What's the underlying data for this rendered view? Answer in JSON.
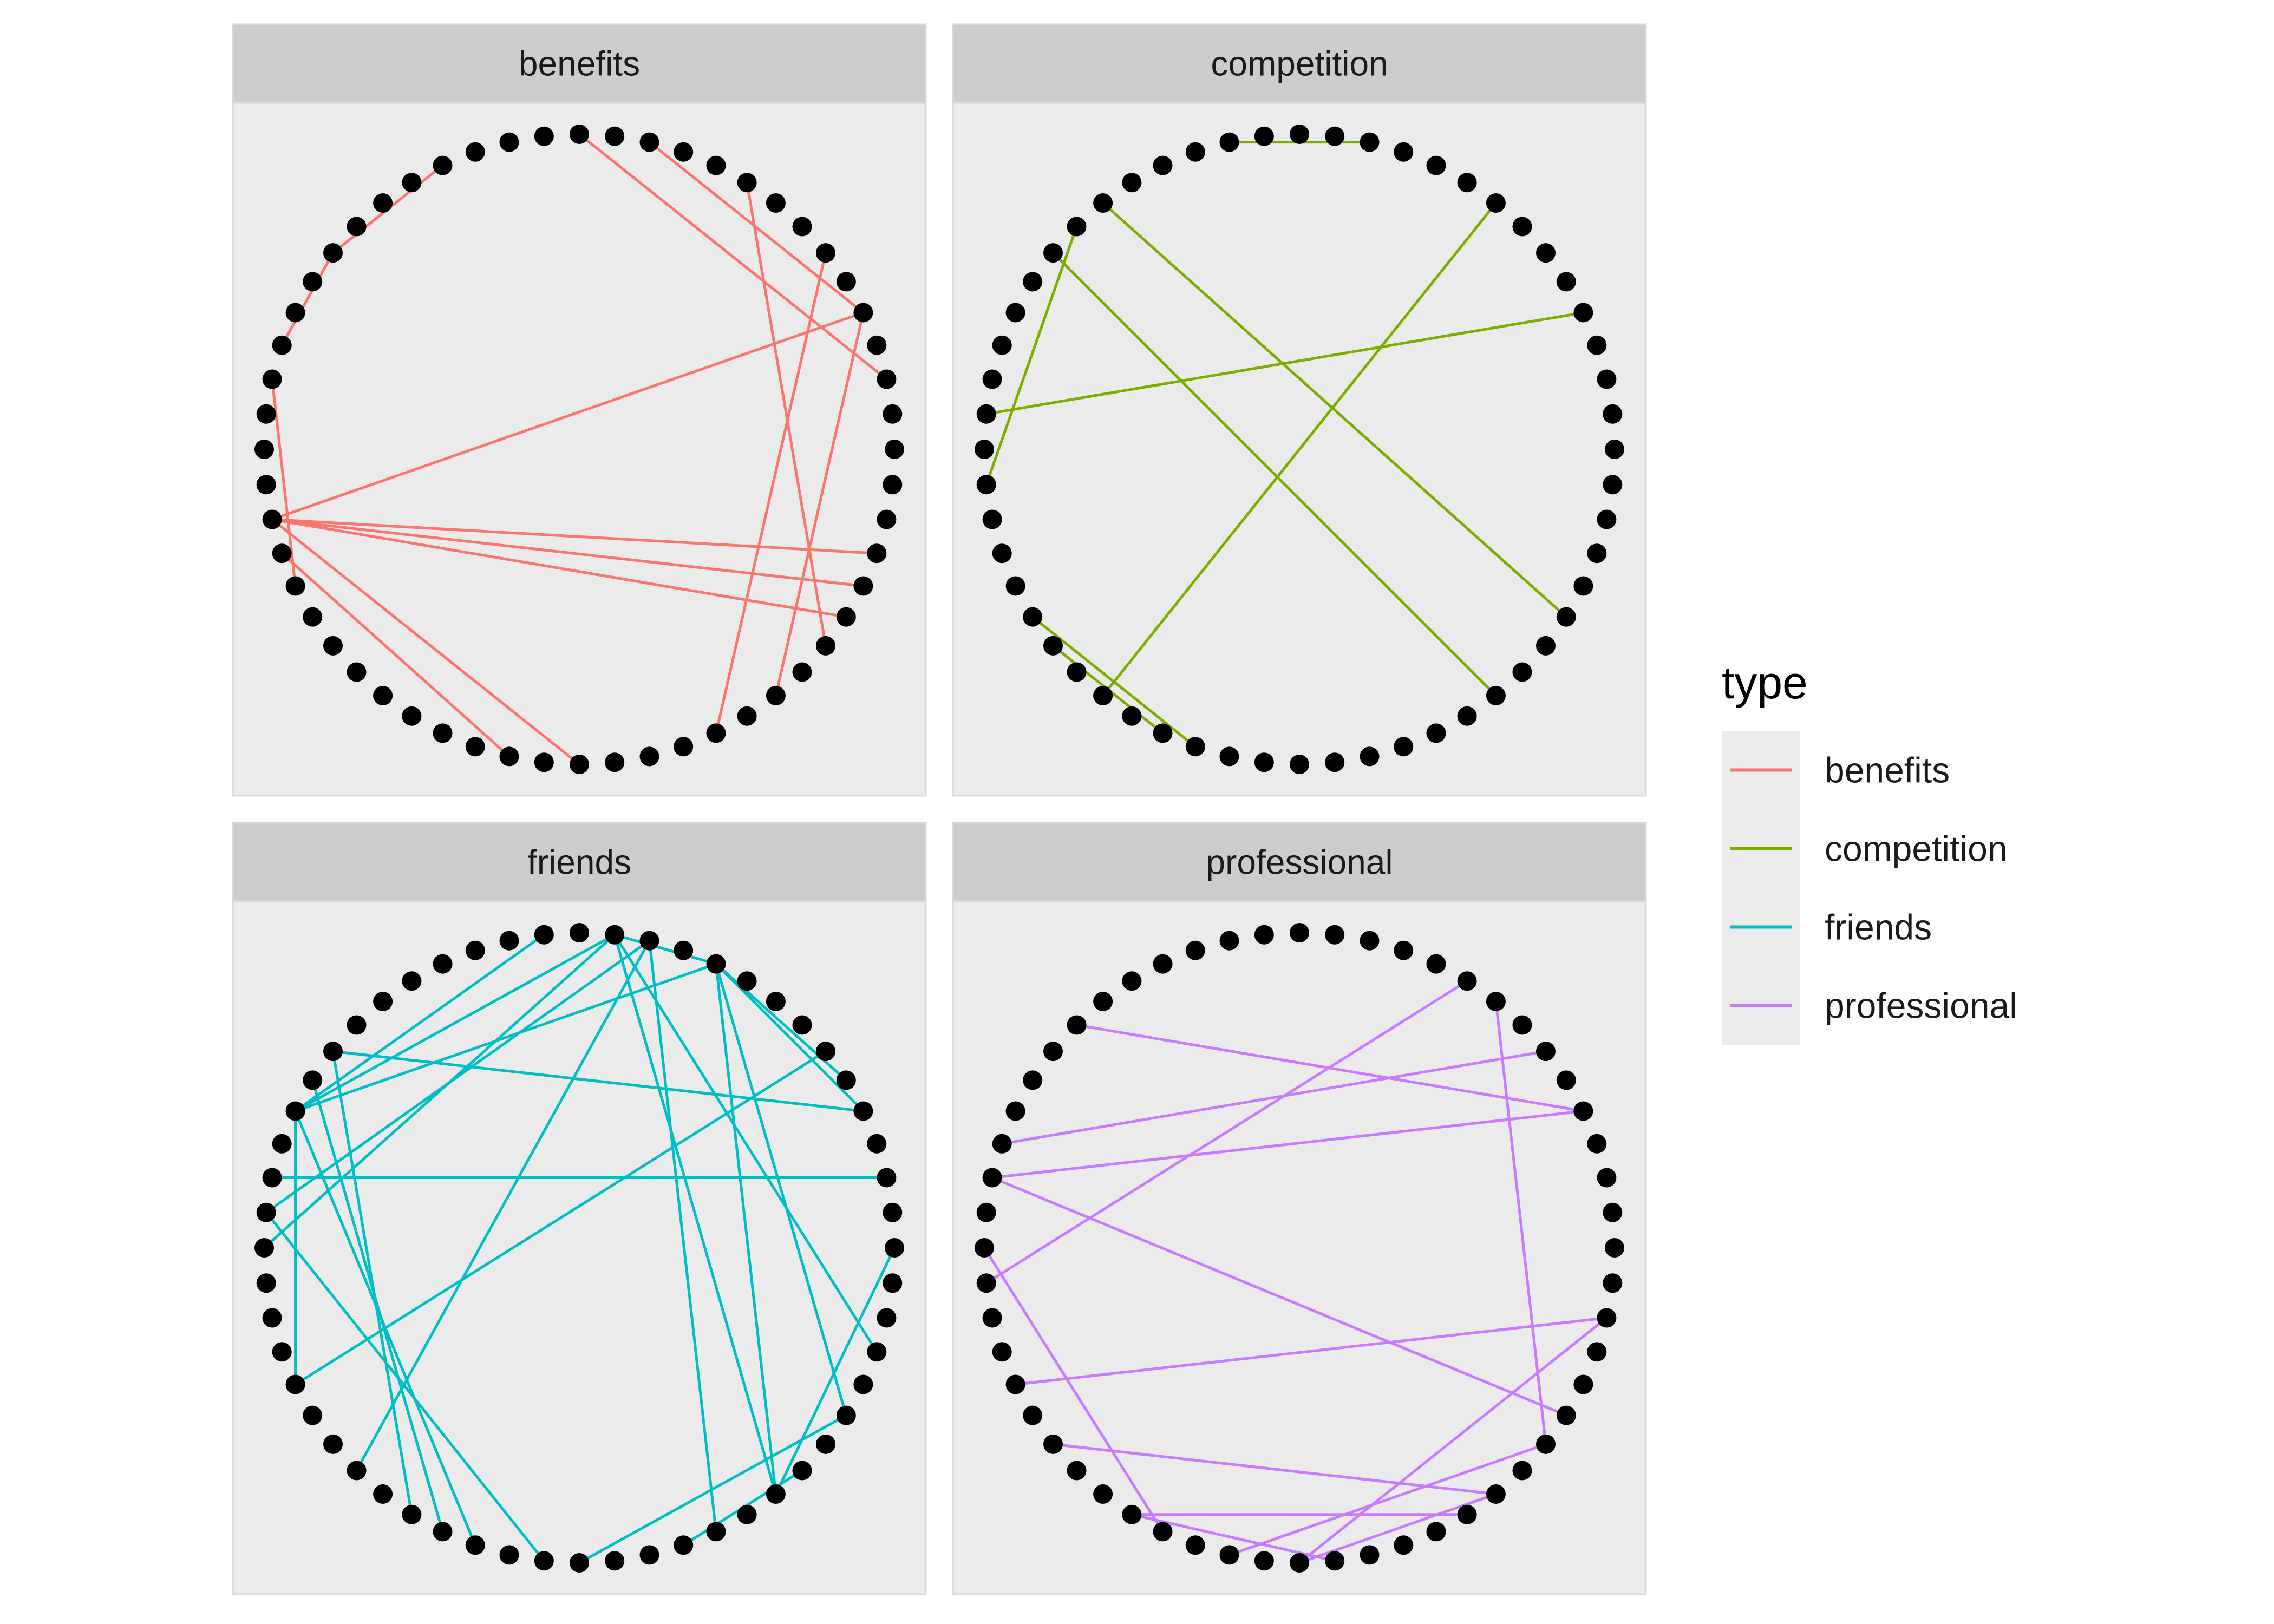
{
  "chart_data": {
    "type": "network-facets",
    "node_count": 56,
    "layout": "circle",
    "facets": [
      {
        "label": "benefits",
        "type": "benefits",
        "edges": [
          [
            0,
            12
          ],
          [
            2,
            10
          ],
          [
            5,
            20
          ],
          [
            8,
            24
          ],
          [
            10,
            22
          ],
          [
            10,
            40
          ],
          [
            17,
            40
          ],
          [
            18,
            40
          ],
          [
            19,
            40
          ],
          [
            28,
            40
          ],
          [
            30,
            39
          ],
          [
            38,
            44
          ],
          [
            48,
            45
          ],
          [
            52,
            48
          ]
        ]
      },
      {
        "label": "competition",
        "type": "competition",
        "edges": [
          [
            6,
            34
          ],
          [
            10,
            43
          ],
          [
            22,
            48
          ],
          [
            19,
            50
          ],
          [
            37,
            31
          ],
          [
            36,
            32
          ],
          [
            54,
            2
          ],
          [
            41,
            49
          ]
        ]
      },
      {
        "label": "friends",
        "type": "friends",
        "edges": [
          [
            1,
            4
          ],
          [
            1,
            17
          ],
          [
            1,
            22
          ],
          [
            1,
            42
          ],
          [
            1,
            46
          ],
          [
            2,
            43
          ],
          [
            2,
            24
          ],
          [
            2,
            35
          ],
          [
            4,
            9
          ],
          [
            4,
            10
          ],
          [
            4,
            19
          ],
          [
            4,
            22
          ],
          [
            4,
            46
          ],
          [
            8,
            38
          ],
          [
            14,
            22
          ],
          [
            10,
            48
          ],
          [
            12,
            44
          ],
          [
            19,
            28
          ],
          [
            21,
            25
          ],
          [
            29,
            43
          ],
          [
            31,
            46
          ],
          [
            32,
            47
          ],
          [
            33,
            48
          ],
          [
            38,
            46
          ],
          [
            46,
            55
          ]
        ]
      },
      {
        "label": "professional",
        "type": "professional",
        "edges": [
          [
            6,
            20
          ],
          [
            10,
            44
          ],
          [
            10,
            49
          ],
          [
            16,
            28
          ],
          [
            16,
            38
          ],
          [
            19,
            44
          ],
          [
            20,
            30
          ],
          [
            22,
            36
          ],
          [
            22,
            28
          ],
          [
            23,
            33
          ],
          [
            27,
            33
          ],
          [
            32,
            42
          ],
          [
            41,
            5
          ],
          [
            45,
            8
          ]
        ]
      }
    ],
    "legend": {
      "title": "type",
      "position": "right",
      "entries": [
        {
          "label": "benefits",
          "color": "#f8766d"
        },
        {
          "label": "competition",
          "color": "#7cae00"
        },
        {
          "label": "friends",
          "color": "#00bfc4"
        },
        {
          "label": "professional",
          "color": "#c77cff"
        }
      ]
    }
  }
}
